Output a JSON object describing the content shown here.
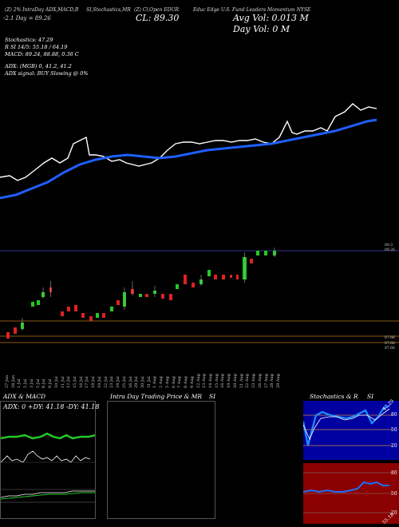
{
  "header": {
    "line1": {
      "col1": "(Z) 2% IntraDay ADX,MACD,B",
      "col2": "SI,Stochastics,MR",
      "col3": "(Z) Cl,Open EDUR",
      "col4": "Educ Edge  U.S. Fund Leaders Momentum  NYSE"
    },
    "change": "-2.1  Day = 89.26",
    "close": "CL: 89.30",
    "avg_vol": "Avg Vol: 0.013 M",
    "day_vol": "Day Vol: 0   M"
  },
  "indicators": {
    "stochastics": "Stochastics: 47.29",
    "rsi": "R        SI 14/5: 55.18 / 64.19",
    "macd": "MACD: 89.24, 88.88, 0.36   C",
    "adx": "ADX:                         (MGB) 0, 41.2, 41.2",
    "adx_signal": "ADX  signal:                     BUY Slowing @ 0%"
  },
  "price_tags": {
    "top": [
      "89.3",
      "89.26"
    ],
    "bottom": [
      "87.66",
      "87.66",
      "87.66"
    ]
  },
  "dates": [
    "27 Jun",
    "28 Jun",
    "1 Jul",
    "2 Jul",
    "3 Jul",
    "5 Jul",
    "8 Jul",
    "9 Jul",
    "10 Jul",
    "11 Jul",
    "12 Jul",
    "15 Jul",
    "16 Jul",
    "17 Jul",
    "18 Jul",
    "19 Jul",
    "22 Jul",
    "23 Jul",
    "24 Jul",
    "25 Jul",
    "26 Jul",
    "29 Jul",
    "30 Jul",
    "31 Jul",
    "1 Aug",
    "2 Aug",
    "5 Aug",
    "6 Aug",
    "7 Aug",
    "8 Aug",
    "9 Aug",
    "12 Aug",
    "13 Aug",
    "14 Aug",
    "15 Aug",
    "16 Aug",
    "19 Aug",
    "20 Aug",
    "21 Aug",
    "22 Aug",
    "23 Aug",
    "26 Aug",
    "27 Aug",
    "28 Aug",
    "29 Aug"
  ],
  "panels": {
    "adx_macd": {
      "title": "ADX  & MACD",
      "readout": "ADX: 0   +DY: 41.18   -DY: 41.18"
    },
    "intraday": {
      "title": "Intra  Day Trading Price  & MR",
      "title_right": "SI"
    },
    "stoch_rsi": {
      "title": "Stochastics & R",
      "title_right": "SI",
      "stoch_levels": [
        "80",
        "50",
        "20"
      ],
      "rsi_levels": [
        "80",
        "50",
        "20"
      ],
      "stoch_value": "47.29",
      "rsi_value": "55.18"
    }
  },
  "colors": {
    "background": "#000000",
    "price_line": "#ffffff",
    "ma_line": "#1e5fff",
    "candle_up": "#22cc22",
    "candle_down": "#dd2222",
    "support_line": "#8a5a14",
    "resistance_line": "#2b3a8c",
    "stoch_bg": "#0000a0",
    "rsi_bg": "#8b0000"
  }
}
